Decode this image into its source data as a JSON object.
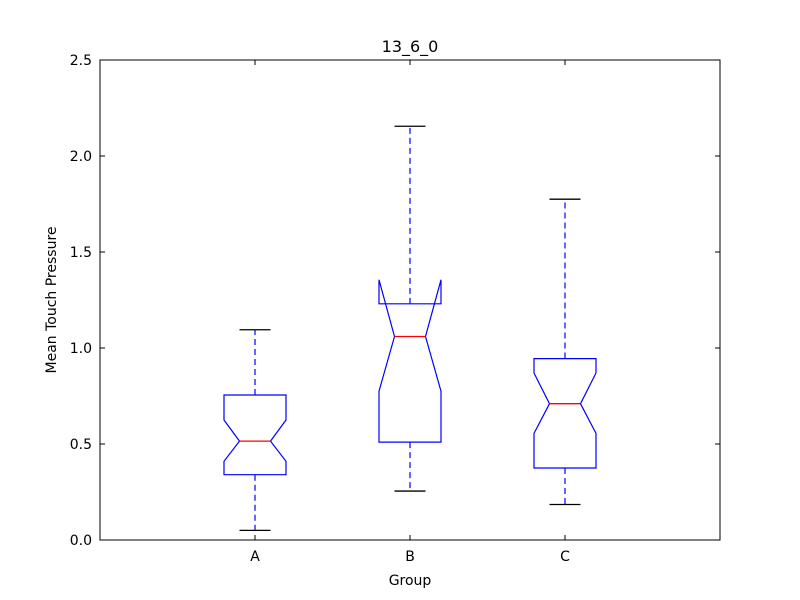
{
  "chart_data": {
    "type": "boxplot",
    "notched": true,
    "title": "13_6_0",
    "xlabel": "Group",
    "ylabel": "Mean Touch Pressure",
    "ylim": [
      0,
      2.5
    ],
    "yticks": [
      "0.0",
      "0.5",
      "1.0",
      "1.5",
      "2.0",
      "2.5"
    ],
    "categories": [
      "A",
      "B",
      "C"
    ],
    "boxes": [
      {
        "label": "A",
        "whisker_low": 0.05,
        "q1": 0.34,
        "median": 0.515,
        "q3": 0.755,
        "whisker_high": 1.095,
        "notch_low": 0.41,
        "notch_high": 0.625
      },
      {
        "label": "B",
        "whisker_low": 0.255,
        "q1": 0.51,
        "median": 1.06,
        "q3": 1.23,
        "whisker_high": 2.155,
        "notch_low": 0.775,
        "notch_high": 1.355
      },
      {
        "label": "C",
        "whisker_low": 0.185,
        "q1": 0.375,
        "median": 0.71,
        "q3": 0.945,
        "whisker_high": 1.775,
        "notch_low": 0.555,
        "notch_high": 0.87
      }
    ],
    "colors": {
      "box": "#0000ff",
      "median": "#ff0000",
      "cap": "#000000"
    },
    "grid": false
  }
}
